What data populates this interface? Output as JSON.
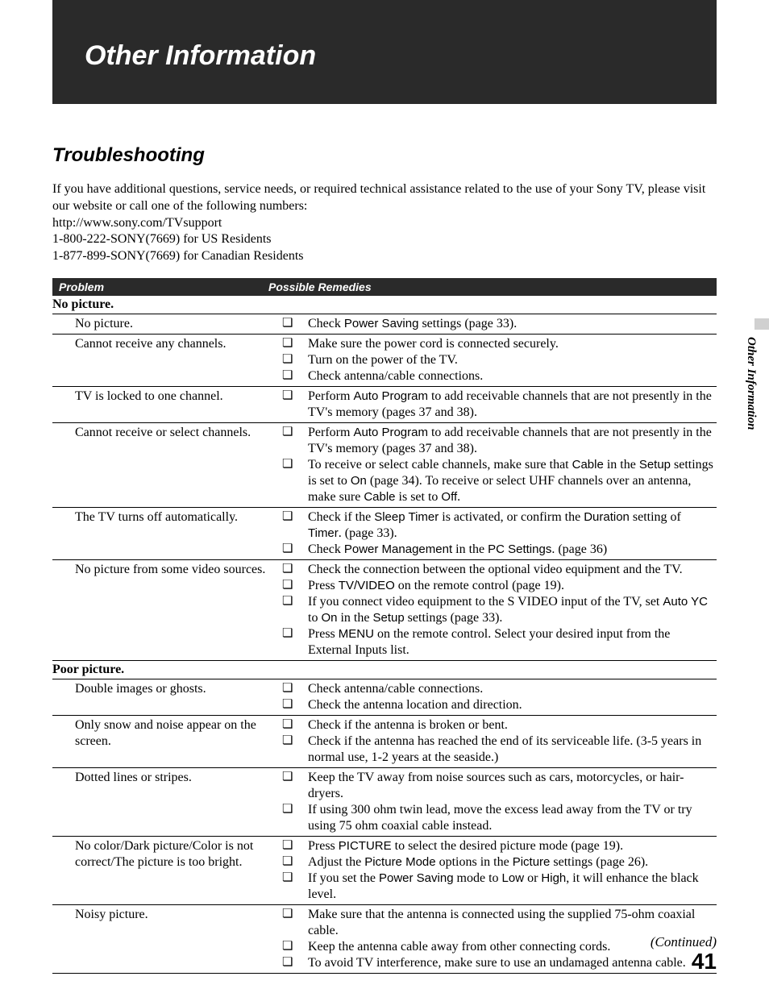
{
  "header": {
    "title": "Other Information"
  },
  "section": {
    "title": "Troubleshooting"
  },
  "intro": {
    "line1": "If you have additional questions, service needs, or required technical assistance related to the use of your Sony TV, please visit our website or call one of the following numbers:",
    "url": "http://www.sony.com/TVsupport",
    "phone_us": "1-800-222-SONY(7669) for US Residents",
    "phone_ca": "1-877-899-SONY(7669) for Canadian Residents"
  },
  "table_header": {
    "problem": "Problem",
    "remedies": "Possible Remedies"
  },
  "categories": [
    {
      "label": "No picture.",
      "rows": [
        {
          "problem": "No picture.",
          "remedies": [
            [
              {
                "t": "Check "
              },
              {
                "t": "Power Saving",
                "s": 1
              },
              {
                "t": " settings (page 33)."
              }
            ]
          ]
        },
        {
          "problem": "Cannot receive any channels.",
          "remedies": [
            [
              {
                "t": "Make sure the power cord is connected securely."
              }
            ],
            [
              {
                "t": "Turn on the power of the TV."
              }
            ],
            [
              {
                "t": "Check antenna/cable connections."
              }
            ]
          ]
        },
        {
          "problem": "TV is locked to one channel.",
          "remedies": [
            [
              {
                "t": "Perform "
              },
              {
                "t": "Auto Program",
                "s": 1
              },
              {
                "t": " to add receivable channels that are not presently in the TV's memory (pages 37 and 38)."
              }
            ]
          ]
        },
        {
          "problem": "Cannot receive or select channels.",
          "remedies": [
            [
              {
                "t": "Perform "
              },
              {
                "t": "Auto Program",
                "s": 1
              },
              {
                "t": " to add receivable channels that are not presently in the TV's memory (pages 37 and 38)."
              }
            ],
            [
              {
                "t": "To receive or select cable channels, make sure that "
              },
              {
                "t": "Cable",
                "s": 1
              },
              {
                "t": " in the "
              },
              {
                "t": "Setup",
                "s": 1
              },
              {
                "t": " settings is set to "
              },
              {
                "t": "On",
                "s": 1
              },
              {
                "t": " (page 34). To receive or select UHF channels over an antenna, make sure "
              },
              {
                "t": "Cable",
                "s": 1
              },
              {
                "t": " is set to "
              },
              {
                "t": "Off",
                "s": 1
              },
              {
                "t": "."
              }
            ]
          ]
        },
        {
          "problem": "The TV turns off automatically.",
          "remedies": [
            [
              {
                "t": "Check if the "
              },
              {
                "t": "Sleep Timer",
                "s": 1
              },
              {
                "t": " is activated, or confirm the "
              },
              {
                "t": "Duration",
                "s": 1
              },
              {
                "t": " setting of "
              },
              {
                "t": "Timer",
                "s": 1
              },
              {
                "t": ". (page 33)."
              }
            ],
            [
              {
                "t": "Check "
              },
              {
                "t": "Power Management",
                "s": 1
              },
              {
                "t": " in the "
              },
              {
                "t": "PC Settings",
                "s": 1
              },
              {
                "t": ". (page 36)"
              }
            ]
          ]
        },
        {
          "problem": "No picture from some video sources.",
          "remedies": [
            [
              {
                "t": "Check the connection between the optional video equipment and the TV."
              }
            ],
            [
              {
                "t": "Press "
              },
              {
                "t": "TV/VIDEO",
                "s": 1
              },
              {
                "t": " on the remote control (page 19)."
              }
            ],
            [
              {
                "t": "If you connect video equipment to the S VIDEO input of the TV, set "
              },
              {
                "t": "Auto YC",
                "s": 1
              },
              {
                "t": " to "
              },
              {
                "t": "On",
                "s": 1
              },
              {
                "t": " in the "
              },
              {
                "t": "Setup",
                "s": 1
              },
              {
                "t": " settings (page 33)."
              }
            ],
            [
              {
                "t": "Press "
              },
              {
                "t": "MENU",
                "s": 1
              },
              {
                "t": " on the remote control. Select your desired input from the External Inputs list."
              }
            ]
          ]
        }
      ]
    },
    {
      "label": "Poor picture.",
      "rows": [
        {
          "problem": "Double images or ghosts.",
          "remedies": [
            [
              {
                "t": "Check antenna/cable connections."
              }
            ],
            [
              {
                "t": "Check the antenna location and direction."
              }
            ]
          ]
        },
        {
          "problem": "Only snow and noise appear on the screen.",
          "remedies": [
            [
              {
                "t": "Check if the antenna is broken or bent."
              }
            ],
            [
              {
                "t": "Check if the antenna has reached the end of its serviceable life. (3-5 years in normal use, 1-2 years at the seaside.)"
              }
            ]
          ]
        },
        {
          "problem": "Dotted lines or stripes.",
          "remedies": [
            [
              {
                "t": "Keep the TV away from noise sources such as cars, motorcycles, or hair-dryers."
              }
            ],
            [
              {
                "t": "If using 300 ohm twin lead, move the excess lead away from the TV or try using 75 ohm coaxial cable instead."
              }
            ]
          ]
        },
        {
          "problem": "No color/Dark picture/Color is not correct/The picture is too bright.",
          "remedies": [
            [
              {
                "t": "Press "
              },
              {
                "t": "PICTURE",
                "s": 1
              },
              {
                "t": " to select the desired picture mode (page 19)."
              }
            ],
            [
              {
                "t": "Adjust the "
              },
              {
                "t": "Picture Mode",
                "s": 1
              },
              {
                "t": " options in the "
              },
              {
                "t": "Picture",
                "s": 1
              },
              {
                "t": " settings (page 26)."
              }
            ],
            [
              {
                "t": "If you set the "
              },
              {
                "t": "Power Saving",
                "s": 1
              },
              {
                "t": " mode to "
              },
              {
                "t": "Low",
                "s": 1
              },
              {
                "t": " or "
              },
              {
                "t": "High",
                "s": 1
              },
              {
                "t": ", it will enhance the black level."
              }
            ]
          ]
        },
        {
          "problem": "Noisy picture.",
          "remedies": [
            [
              {
                "t": "Make sure that the antenna is connected using the supplied 75-ohm coaxial cable."
              }
            ],
            [
              {
                "t": "Keep the antenna cable away from other connecting cords."
              }
            ],
            [
              {
                "t": "To avoid TV interference, make sure to use an undamaged antenna cable."
              }
            ]
          ]
        }
      ]
    }
  ],
  "side": {
    "label": "Other Information"
  },
  "footer": {
    "continued": "(Continued)",
    "page": "41"
  },
  "bullet_glyph": "❏",
  "colors": {
    "header_bg": "#2a2a2a",
    "header_fg": "#ffffff",
    "side_tab_bg": "#d0d0d0",
    "rule": "#000000"
  }
}
